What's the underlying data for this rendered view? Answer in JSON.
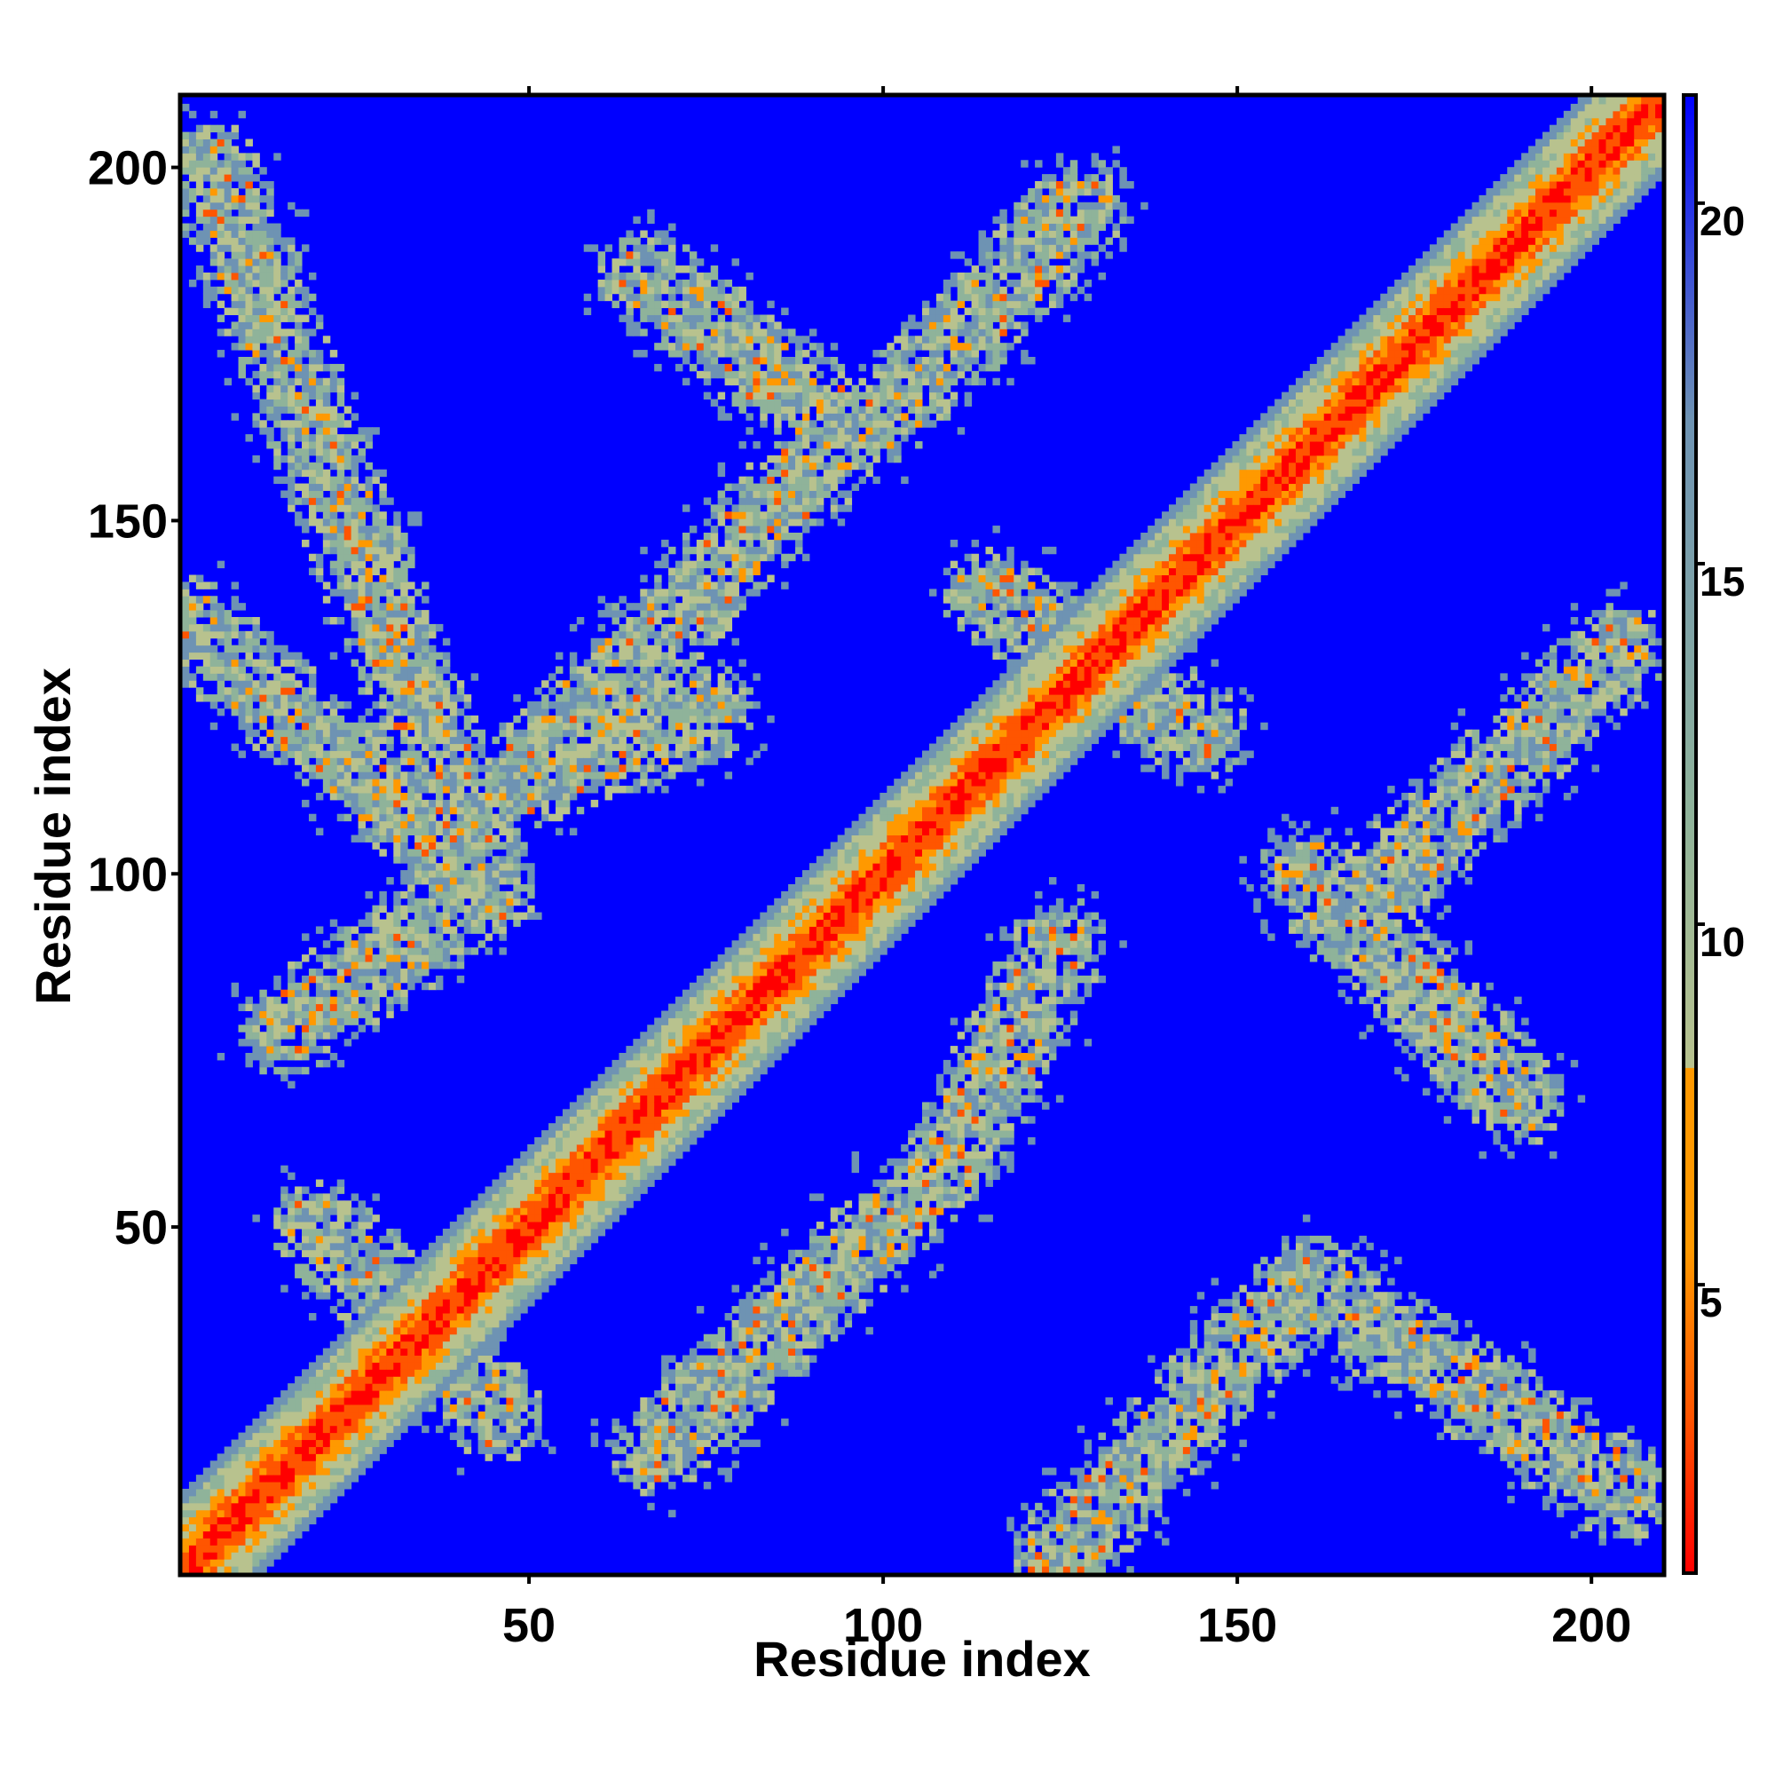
{
  "chart_data": {
    "type": "heatmap",
    "title": "",
    "xlabel": "Residue index",
    "ylabel": "Residue index",
    "n_residues": 210,
    "xlim": [
      1,
      210
    ],
    "ylim": [
      1,
      210
    ],
    "x_ticks": [
      50,
      100,
      150,
      200
    ],
    "y_ticks": [
      50,
      100,
      150,
      200
    ],
    "colorbar": {
      "range": [
        1,
        21.5
      ],
      "ticks": [
        5,
        10,
        15,
        20
      ],
      "colors": {
        "red": "#ff0000",
        "orange_red": "#ff5500",
        "orange": "#ff9900",
        "khaki": "#b8c28e",
        "sage": "#8fb39a",
        "steel": "#6e93b3",
        "blue": "#0000ff"
      }
    },
    "matrix_description": "Symmetric residue-residue distance map; diagonal band values near 1-5, secondary structure contact bands ~8-15, background ~21",
    "contact_bands": [
      {
        "from": [
          5,
          200
        ],
        "to": [
          44,
          98
        ]
      },
      {
        "from": [
          1,
          136
        ],
        "to": [
          44,
          98
        ]
      },
      {
        "from": [
          66,
          185
        ],
        "to": [
          92,
          165
        ]
      },
      {
        "from": [
          48,
          113
        ],
        "to": [
          92,
          160
        ]
      },
      {
        "from": [
          48,
          113
        ],
        "to": [
          75,
          123
        ]
      },
      {
        "from": [
          15,
          78
        ],
        "to": [
          44,
          98
        ]
      },
      {
        "from": [
          20,
          50
        ],
        "to": [
          45,
          23
        ]
      },
      {
        "from": [
          68,
          18
        ],
        "to": [
          110,
          60
        ]
      },
      {
        "from": [
          110,
          60
        ],
        "to": [
          125,
          90
        ]
      },
      {
        "from": [
          100,
          165
        ],
        "to": [
          128,
          195
        ]
      },
      {
        "from": [
          115,
          140
        ],
        "to": [
          145,
          120
        ]
      },
      {
        "from": [
          125,
          3
        ],
        "to": [
          160,
          42
        ]
      },
      {
        "from": [
          160,
          42
        ],
        "to": [
          205,
          12
        ]
      },
      {
        "from": [
          160,
          100
        ],
        "to": [
          190,
          68
        ]
      },
      {
        "from": [
          165,
          93
        ],
        "to": [
          205,
          132
        ]
      }
    ]
  }
}
